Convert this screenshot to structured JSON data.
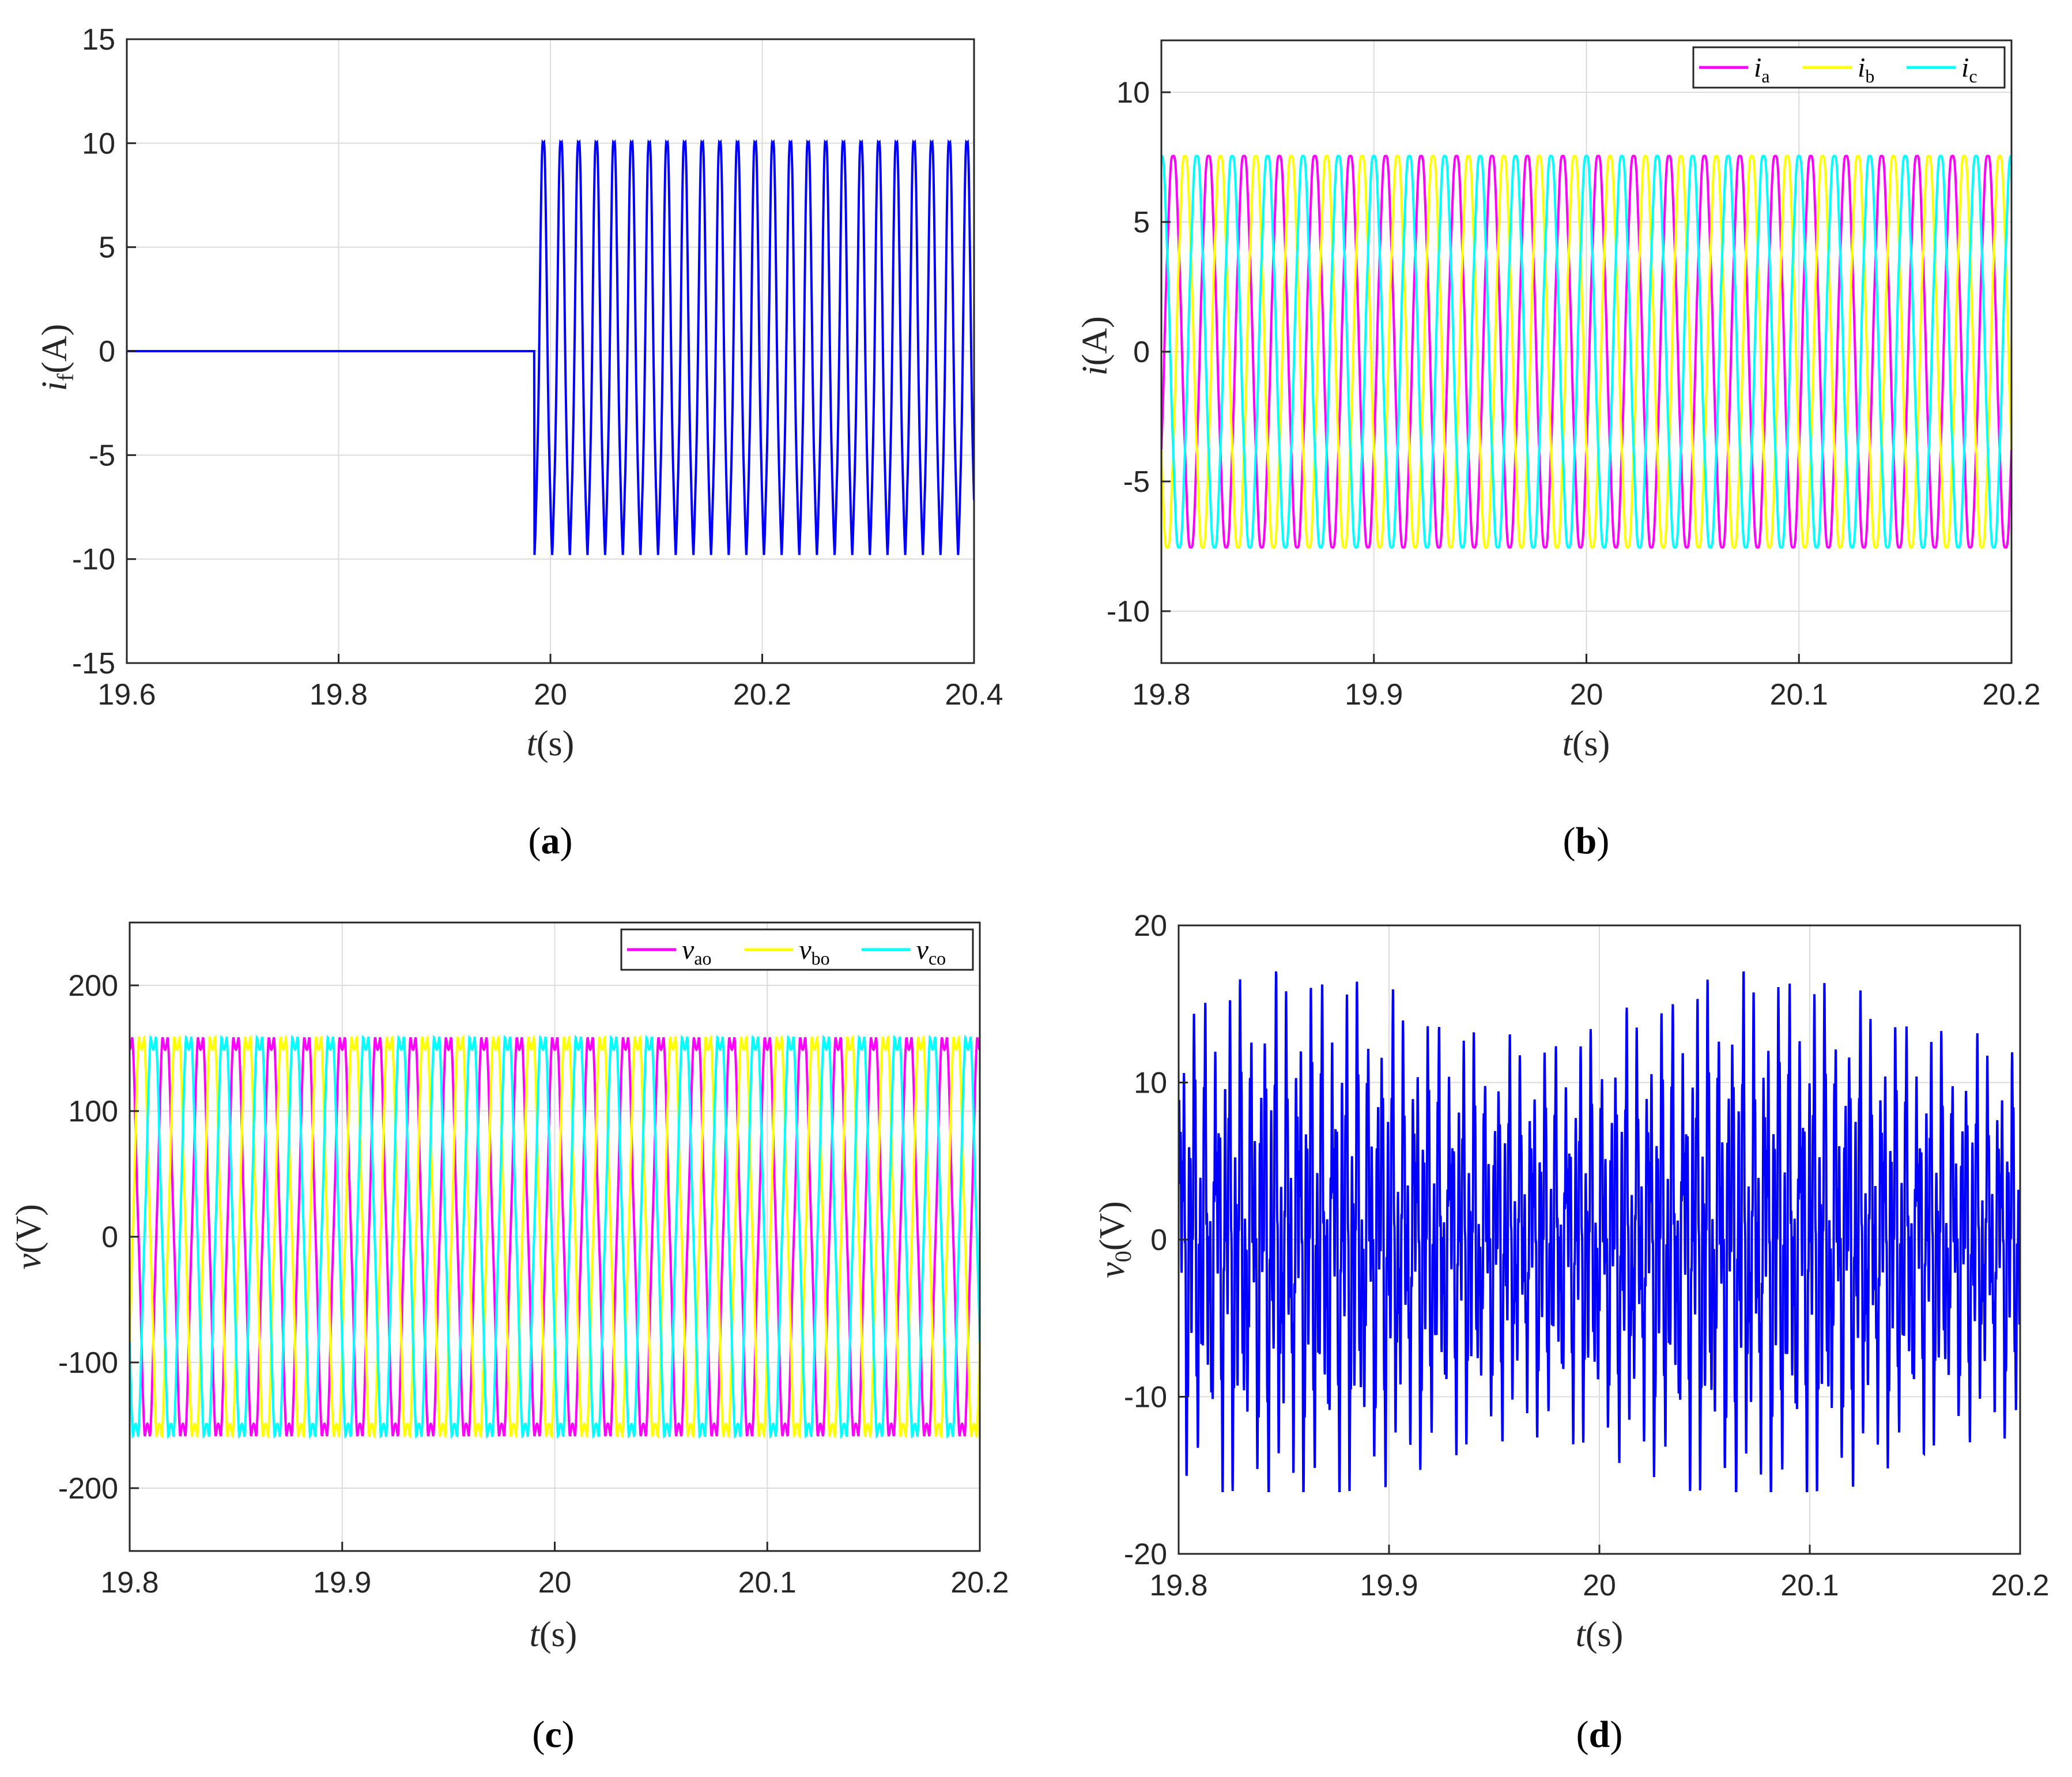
{
  "chart_data": [
    {
      "panel_label": "(a)",
      "type": "line",
      "xlabel": "t(s)",
      "ylabel": "i_f(A)",
      "xlim": [
        19.6,
        20.4
      ],
      "ylim": [
        -15,
        15
      ],
      "xticks": [
        19.6,
        19.8,
        20.0,
        20.2,
        20.4
      ],
      "xtick_labels": [
        "19.6",
        "19.8",
        "20",
        "20.2",
        "20.4"
      ],
      "yticks": [
        -15,
        -10,
        -5,
        0,
        5,
        10,
        15
      ],
      "ytick_labels": [
        "-15",
        "-10",
        "-5",
        "0",
        "5",
        "10",
        "15"
      ],
      "grid": true,
      "legend": "none",
      "series": [
        {
          "color": "#0000ff",
          "x": [
            19.6,
            19.985,
            19.985,
            20.4
          ],
          "y": [
            0,
            0,
            0,
            0
          ],
          "description_points": {
            "zero_until": 19.985,
            "sinusoid_after": 19.985,
            "amplitude": 10,
            "frequency_hz": 60
          }
        }
      ]
    },
    {
      "panel_label": "(b)",
      "type": "line",
      "xlabel": "t(s)",
      "ylabel": "i(A)",
      "xlim": [
        19.8,
        20.2
      ],
      "ylim": [
        -12,
        12
      ],
      "xticks": [
        19.8,
        19.9,
        20.0,
        20.1,
        20.2
      ],
      "xtick_labels": [
        "19.8",
        "19.9",
        "20",
        "20.1",
        "20.2"
      ],
      "yticks": [
        -10,
        -5,
        0,
        5,
        10
      ],
      "ytick_labels": [
        "-10",
        "-5",
        "0",
        "5",
        "10"
      ],
      "grid": true,
      "legend": "top-right",
      "series": [
        {
          "name": "i_a",
          "name_base": "i",
          "name_sub": "a",
          "color": "#ff00ff",
          "amplitude": 7.7,
          "frequency_hz": 60,
          "phase_deg": -30
        },
        {
          "name": "i_b",
          "name_base": "i",
          "name_sub": "b",
          "color": "#ffff00",
          "amplitude": 7.7,
          "frequency_hz": 60,
          "phase_deg": -150
        },
        {
          "name": "i_c",
          "name_base": "i",
          "name_sub": "c",
          "color": "#00ffff",
          "amplitude": 7.7,
          "frequency_hz": 60,
          "phase_deg": 90
        }
      ]
    },
    {
      "panel_label": "(c)",
      "type": "line",
      "xlabel": "t(s)",
      "ylabel": "v(V)",
      "xlim": [
        19.8,
        20.2
      ],
      "ylim": [
        -250,
        250
      ],
      "xticks": [
        19.8,
        19.9,
        20.0,
        20.1,
        20.2
      ],
      "xtick_labels": [
        "19.8",
        "19.9",
        "20",
        "20.1",
        "20.2"
      ],
      "yticks": [
        -200,
        -100,
        0,
        100,
        200
      ],
      "ytick_labels": [
        "-200",
        "-100",
        "0",
        "100",
        "200"
      ],
      "grid": true,
      "legend": "top-right",
      "series": [
        {
          "name": "v_ao",
          "name_base": "v",
          "name_sub": "ao",
          "color": "#ff00ff",
          "amplitude": 155,
          "frequency_hz": 60,
          "phase_deg": 90
        },
        {
          "name": "v_bo",
          "name_base": "v",
          "name_sub": "bo",
          "color": "#ffff00",
          "amplitude": 155,
          "frequency_hz": 60,
          "phase_deg": -30
        },
        {
          "name": "v_co",
          "name_base": "v",
          "name_sub": "co",
          "color": "#00ffff",
          "amplitude": 155,
          "frequency_hz": 60,
          "phase_deg": 210
        }
      ]
    },
    {
      "panel_label": "(d)",
      "type": "line",
      "xlabel": "t(s)",
      "ylabel": "v_0(V)",
      "xlim": [
        19.8,
        20.2
      ],
      "ylim": [
        -20,
        20
      ],
      "xticks": [
        19.8,
        19.9,
        20.0,
        20.1,
        20.2
      ],
      "xtick_labels": [
        "19.8",
        "19.9",
        "20",
        "20.1",
        "20.2"
      ],
      "yticks": [
        -20,
        -10,
        0,
        10,
        20
      ],
      "ytick_labels": [
        "-20",
        "-10",
        "0",
        "10",
        "20"
      ],
      "grid": true,
      "legend": "none",
      "series": [
        {
          "color": "#0000ff",
          "peak_range": [
            -16,
            17
          ],
          "dominant_frequency_hz": 180
        }
      ]
    }
  ],
  "captions": {
    "a": {
      "open": "(",
      "letter": "a",
      "close": ")"
    },
    "b": {
      "open": "(",
      "letter": "b",
      "close": ")"
    },
    "c": {
      "open": "(",
      "letter": "c",
      "close": ")"
    },
    "d": {
      "open": "(",
      "letter": "d",
      "close": ")"
    }
  },
  "axis_text": {
    "t": "t",
    "s": "(s)",
    "a_label": {
      "base": "i",
      "sub": "f",
      "unit": "(A)"
    },
    "b_label": {
      "base": "i",
      "unit": "(A)"
    },
    "c_label": {
      "base": "v",
      "unit": "(V)"
    },
    "d_label": {
      "base": "v",
      "sub": "0",
      "unit": "(V)"
    }
  }
}
